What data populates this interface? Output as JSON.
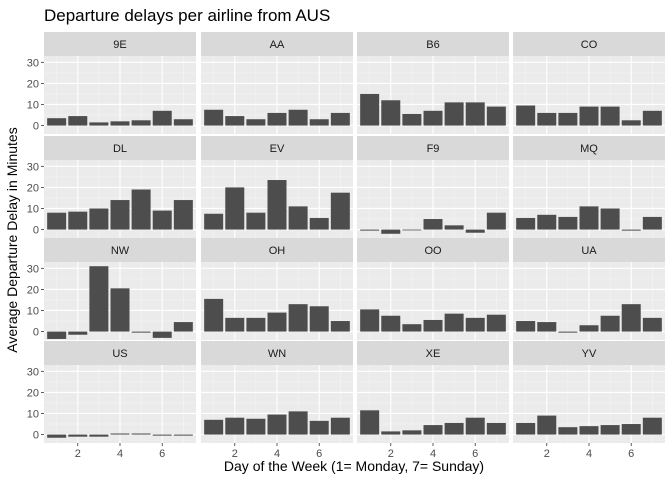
{
  "chart_data": {
    "type": "bar",
    "title": "Departure delays per airline from AUS",
    "xlabel": "Day of the Week (1= Monday, 7= Sunday)",
    "ylabel": "Average Departure Delay in Minutes",
    "x": [
      1,
      2,
      3,
      4,
      5,
      6,
      7
    ],
    "xticks": [
      "2",
      "4",
      "6"
    ],
    "yticks": [
      "0",
      "10",
      "20",
      "30"
    ],
    "ylim": [
      -4,
      33
    ],
    "grid": true,
    "facets": [
      {
        "name": "9E",
        "values": [
          3.5,
          4.5,
          1.5,
          2,
          2.5,
          7,
          3
        ]
      },
      {
        "name": "AA",
        "values": [
          7.5,
          4.5,
          3,
          6,
          7.5,
          3,
          6
        ]
      },
      {
        "name": "B6",
        "values": [
          15,
          12,
          5.5,
          7,
          11,
          11,
          9
        ]
      },
      {
        "name": "CO",
        "values": [
          9.5,
          6,
          6,
          9,
          9,
          2.5,
          7
        ]
      },
      {
        "name": "DL",
        "values": [
          8,
          8.5,
          10,
          14,
          19,
          9,
          14
        ]
      },
      {
        "name": "EV",
        "values": [
          7.5,
          20,
          8,
          23.5,
          11,
          5.5,
          17.5
        ]
      },
      {
        "name": "F9",
        "values": [
          -0.5,
          -2,
          -0.3,
          5,
          2,
          -1.5,
          8
        ]
      },
      {
        "name": "MQ",
        "values": [
          5.5,
          7,
          6,
          11,
          10,
          -0.5,
          6
        ]
      },
      {
        "name": "NW",
        "values": [
          -3.5,
          -1.5,
          31,
          20.5,
          -0.5,
          -3,
          4.5
        ]
      },
      {
        "name": "OH",
        "values": [
          15.5,
          6.5,
          6.5,
          9,
          13,
          12,
          5
        ]
      },
      {
        "name": "OO",
        "values": [
          10.5,
          7.5,
          3.5,
          5.5,
          8.5,
          6.5,
          8
        ]
      },
      {
        "name": "UA",
        "values": [
          5,
          4.5,
          -0.5,
          3,
          7.5,
          13,
          6.5
        ]
      },
      {
        "name": "US",
        "values": [
          -1.5,
          -1,
          -1,
          0.5,
          0.5,
          -0.5,
          -0.5
        ]
      },
      {
        "name": "WN",
        "values": [
          7,
          8,
          7.5,
          9.5,
          11,
          6.5,
          8
        ]
      },
      {
        "name": "XE",
        "values": [
          11.5,
          1.5,
          2,
          4.5,
          5.5,
          8,
          5.5
        ]
      },
      {
        "name": "YV",
        "values": [
          5.5,
          9,
          3.5,
          4,
          4.5,
          5,
          8
        ]
      }
    ],
    "colors": {
      "bar": "#4d4d4d",
      "panel_background": "#ebebeb",
      "strip_background": "#d9d9d9",
      "grid_major": "#ffffff",
      "grid_minor": "#f5f5f5",
      "text": "#1a1a1a",
      "tick_text": "#4d4d4d"
    }
  }
}
